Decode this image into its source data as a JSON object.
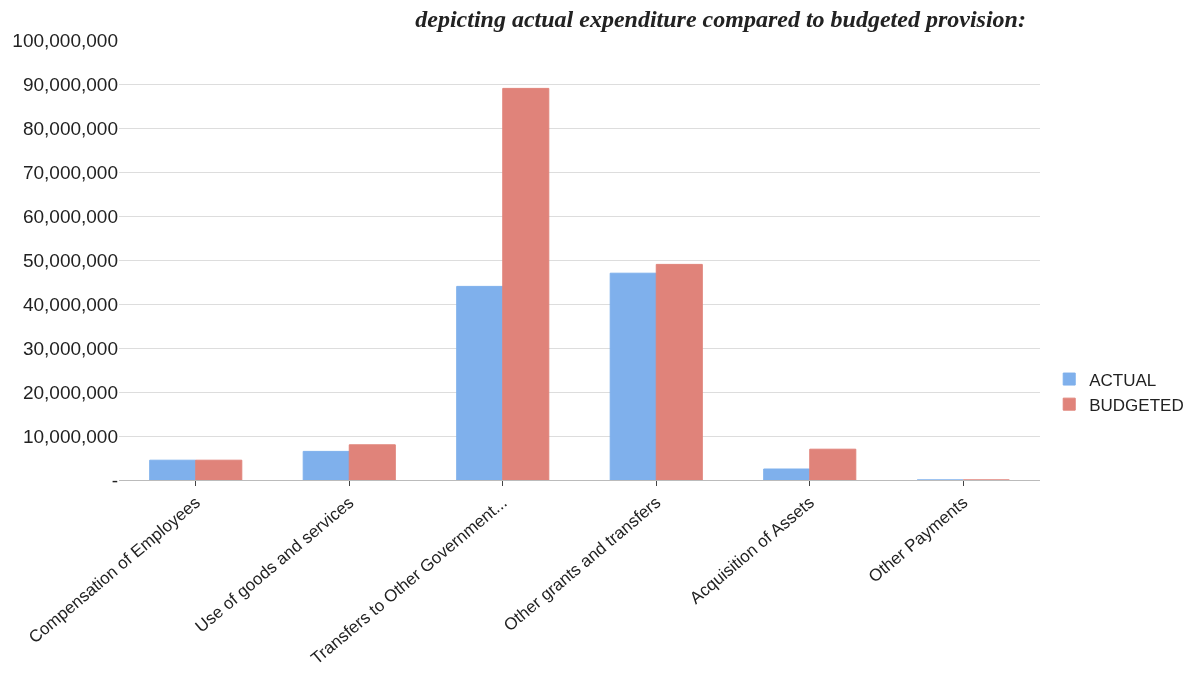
{
  "chart_data": {
    "type": "bar",
    "title": "depicting actual expenditure compared to budgeted provision:",
    "categories": [
      "Compensation of Employees",
      "Use of goods and services",
      "Transfers to Other Government...",
      "Other grants and transfers",
      "Acquisition of Assets",
      "Other Payments"
    ],
    "series": [
      {
        "name": "ACTUAL",
        "color": "#7fb0ec",
        "values": [
          4500000,
          6500000,
          44000000,
          47000000,
          2500000,
          0
        ]
      },
      {
        "name": "BUDGETED",
        "color": "#e0837a",
        "values": [
          4500000,
          8000000,
          89000000,
          49000000,
          7000000,
          0
        ]
      }
    ],
    "ylim": [
      0,
      100000000
    ],
    "yticks": [
      {
        "value": 0,
        "label": "-"
      },
      {
        "value": 10000000,
        "label": "10,000,000"
      },
      {
        "value": 20000000,
        "label": "20,000,000"
      },
      {
        "value": 30000000,
        "label": "30,000,000"
      },
      {
        "value": 40000000,
        "label": "40,000,000"
      },
      {
        "value": 50000000,
        "label": "50,000,000"
      },
      {
        "value": 60000000,
        "label": "60,000,000"
      },
      {
        "value": 70000000,
        "label": "70,000,000"
      },
      {
        "value": 80000000,
        "label": "80,000,000"
      },
      {
        "value": 90000000,
        "label": "90,000,000"
      },
      {
        "value": 100000000,
        "label": "100,000,000"
      }
    ],
    "grid": "y",
    "legend": "right"
  }
}
